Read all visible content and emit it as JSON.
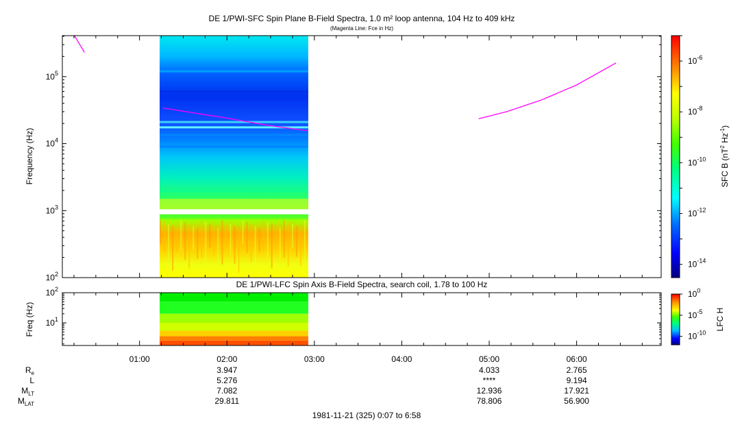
{
  "chart_data": [
    {
      "type": "heatmap",
      "title": "DE 1/PWI-SFC  Spin Plane B-Field Spectra, 1.0 m² loop antenna, 104 Hz to 409 kHz",
      "subtitle": "(Magenta Line: Fce in Hz)",
      "ylabel": "Frequency (Hz)",
      "yscale": "log",
      "ylim": [
        100,
        409000
      ],
      "y_ticks": [
        {
          "base": "10",
          "exp": "2"
        },
        {
          "base": "10",
          "exp": "3"
        },
        {
          "base": "10",
          "exp": "4"
        },
        {
          "base": "10",
          "exp": "5"
        }
      ],
      "colorbar": {
        "label_parts": [
          "SFC B (nT",
          "2",
          " Hz",
          "-1",
          ")"
        ],
        "scale": "log",
        "range": [
          3e-15,
          1e-05
        ],
        "ticks": [
          {
            "base": "10",
            "exp": "-14"
          },
          {
            "base": "10",
            "exp": "-12"
          },
          {
            "base": "10",
            "exp": "-10"
          },
          {
            "base": "10",
            "exp": "-8"
          },
          {
            "base": "10",
            "exp": "-6"
          }
        ]
      },
      "data_interval_hours": [
        1.23,
        2.93
      ],
      "fce_line_color": "#ff00ff",
      "fce_line_segments": [
        {
          "t": [
            0.25,
            0.37
          ],
          "f": [
            420000,
            230000
          ]
        },
        {
          "t": [
            1.27,
            2.0,
            2.5,
            2.93
          ],
          "f": [
            34000,
            24000,
            18500,
            15500
          ]
        },
        {
          "t": [
            4.88,
            5.2,
            5.6,
            6.0,
            6.45
          ],
          "f": [
            23500,
            30000,
            45000,
            75000,
            160000
          ]
        }
      ]
    },
    {
      "type": "heatmap",
      "title": "DE 1/PWI-LFC  Spin Axis B-Field Spectra, search coil, 1.78 to 100 Hz",
      "ylabel": "Freq (Hz)",
      "yscale": "log",
      "ylim": [
        1.78,
        100
      ],
      "y_ticks": [
        {
          "base": "10",
          "exp": "1"
        },
        {
          "base": "10",
          "exp": "2"
        }
      ],
      "colorbar": {
        "label": "LFC H",
        "scale": "log",
        "range": [
          1e-12,
          1
        ],
        "ticks": [
          {
            "base": "10",
            "exp": "0"
          },
          {
            "base": "10",
            "exp": "-5"
          },
          {
            "base": "10",
            "exp": "-10"
          }
        ]
      },
      "data_interval_hours": [
        1.23,
        2.93
      ]
    }
  ],
  "x_axis": {
    "range_hours": [
      0.117,
      6.967
    ],
    "ticks": [
      {
        "h": 1,
        "label": "01:00"
      },
      {
        "h": 2,
        "label": "02:00"
      },
      {
        "h": 3,
        "label": "03:00"
      },
      {
        "h": 4,
        "label": "04:00"
      },
      {
        "h": 5,
        "label": "05:00"
      },
      {
        "h": 6,
        "label": "06:00"
      }
    ]
  },
  "ephemeris": {
    "rows": [
      {
        "name": "R",
        "sub": "e",
        "values": [
          {
            "h": 2,
            "v": "3.947"
          },
          {
            "h": 5,
            "v": "4.033"
          },
          {
            "h": 6,
            "v": "2.765"
          }
        ]
      },
      {
        "name": "L",
        "sub": "",
        "values": [
          {
            "h": 2,
            "v": "5.276"
          },
          {
            "h": 5,
            "v": "****"
          },
          {
            "h": 6,
            "v": "9.194"
          }
        ]
      },
      {
        "name": "M",
        "sub": "LT",
        "values": [
          {
            "h": 2,
            "v": "7.082"
          },
          {
            "h": 5,
            "v": "12.936"
          },
          {
            "h": 6,
            "v": "17.921"
          }
        ]
      },
      {
        "name": "M",
        "sub": "LAT",
        "values": [
          {
            "h": 2,
            "v": "29.811"
          },
          {
            "h": 5,
            "v": "78.806"
          },
          {
            "h": 6,
            "v": "56.900"
          }
        ]
      }
    ]
  },
  "footer": "1981-11-21 (325) 0:07 to 6:58"
}
